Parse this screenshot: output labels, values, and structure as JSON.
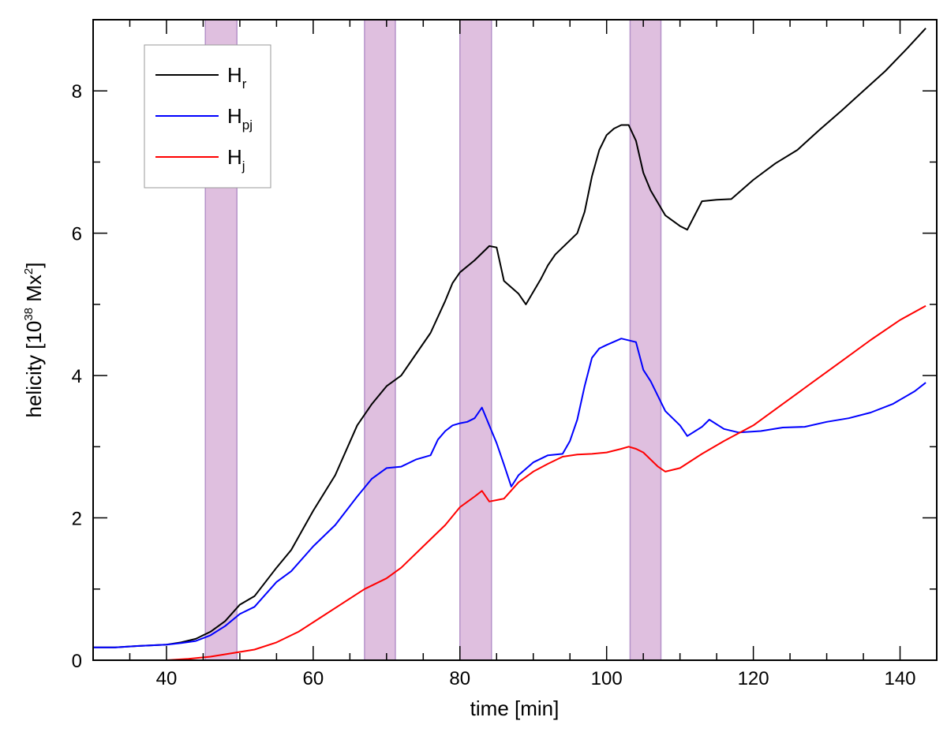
{
  "chart_data": {
    "type": "line",
    "title": "",
    "xlabel": "time [min]",
    "ylabel": {
      "prefix": "helicity [10",
      "exp": "38",
      "unit": " Mx",
      "unit_exp": "2",
      "suffix": "]"
    },
    "xlim": [
      30,
      145
    ],
    "ylim": [
      0,
      9
    ],
    "x_ticks": [
      40,
      60,
      80,
      100,
      120,
      140
    ],
    "y_ticks": [
      0,
      2,
      4,
      6,
      8
    ],
    "x_minor_step": 5,
    "y_minor_step": 1,
    "legend_position": "top-left",
    "shaded_intervals": [
      {
        "start": 45.3,
        "end": 49.6
      },
      {
        "start": 67.0,
        "end": 71.2
      },
      {
        "start": 80.0,
        "end": 84.3
      },
      {
        "start": 103.2,
        "end": 107.4
      }
    ],
    "shade_color": "#dfbfdf",
    "shade_edge_color": "#b592c9",
    "series": [
      {
        "name": "H",
        "sub": "r",
        "color": "#000000",
        "points": [
          [
            30,
            0.18
          ],
          [
            33,
            0.18
          ],
          [
            36,
            0.2
          ],
          [
            38,
            0.21
          ],
          [
            40,
            0.22
          ],
          [
            42,
            0.25
          ],
          [
            44,
            0.3
          ],
          [
            46,
            0.4
          ],
          [
            48,
            0.55
          ],
          [
            50,
            0.78
          ],
          [
            52,
            0.9
          ],
          [
            55,
            1.3
          ],
          [
            57,
            1.55
          ],
          [
            60,
            2.1
          ],
          [
            63,
            2.6
          ],
          [
            66,
            3.3
          ],
          [
            68,
            3.6
          ],
          [
            70,
            3.85
          ],
          [
            72,
            4.0
          ],
          [
            74,
            4.3
          ],
          [
            76,
            4.6
          ],
          [
            78,
            5.05
          ],
          [
            79,
            5.3
          ],
          [
            80,
            5.45
          ],
          [
            82,
            5.62
          ],
          [
            84,
            5.82
          ],
          [
            85,
            5.8
          ],
          [
            86,
            5.33
          ],
          [
            88,
            5.15
          ],
          [
            89,
            5.0
          ],
          [
            91,
            5.35
          ],
          [
            92,
            5.55
          ],
          [
            93,
            5.7
          ],
          [
            94,
            5.8
          ],
          [
            96,
            6.0
          ],
          [
            97,
            6.3
          ],
          [
            98,
            6.8
          ],
          [
            99,
            7.17
          ],
          [
            100,
            7.38
          ],
          [
            101,
            7.47
          ],
          [
            102,
            7.52
          ],
          [
            103,
            7.52
          ],
          [
            104,
            7.3
          ],
          [
            105,
            6.85
          ],
          [
            106,
            6.6
          ],
          [
            108,
            6.25
          ],
          [
            110,
            6.1
          ],
          [
            111,
            6.05
          ],
          [
            113,
            6.45
          ],
          [
            115,
            6.47
          ],
          [
            117,
            6.48
          ],
          [
            120,
            6.75
          ],
          [
            123,
            6.98
          ],
          [
            126,
            7.17
          ],
          [
            129,
            7.45
          ],
          [
            132,
            7.72
          ],
          [
            135,
            8.0
          ],
          [
            138,
            8.28
          ],
          [
            141,
            8.6
          ],
          [
            143.5,
            8.88
          ]
        ]
      },
      {
        "name": "H",
        "sub": "pj",
        "color": "#0000ff",
        "points": [
          [
            30,
            0.18
          ],
          [
            33,
            0.18
          ],
          [
            36,
            0.2
          ],
          [
            38,
            0.21
          ],
          [
            40,
            0.22
          ],
          [
            42,
            0.24
          ],
          [
            44,
            0.27
          ],
          [
            46,
            0.35
          ],
          [
            48,
            0.48
          ],
          [
            50,
            0.65
          ],
          [
            52,
            0.75
          ],
          [
            55,
            1.1
          ],
          [
            57,
            1.25
          ],
          [
            60,
            1.6
          ],
          [
            63,
            1.9
          ],
          [
            66,
            2.3
          ],
          [
            68,
            2.55
          ],
          [
            70,
            2.7
          ],
          [
            72,
            2.72
          ],
          [
            74,
            2.82
          ],
          [
            76,
            2.88
          ],
          [
            77,
            3.1
          ],
          [
            78,
            3.22
          ],
          [
            79,
            3.3
          ],
          [
            80,
            3.33
          ],
          [
            81,
            3.35
          ],
          [
            82,
            3.4
          ],
          [
            83,
            3.55
          ],
          [
            85,
            3.05
          ],
          [
            86,
            2.75
          ],
          [
            87,
            2.44
          ],
          [
            88,
            2.6
          ],
          [
            90,
            2.78
          ],
          [
            92,
            2.88
          ],
          [
            94,
            2.9
          ],
          [
            95,
            3.08
          ],
          [
            96,
            3.38
          ],
          [
            97,
            3.85
          ],
          [
            98,
            4.25
          ],
          [
            99,
            4.38
          ],
          [
            100,
            4.43
          ],
          [
            102,
            4.52
          ],
          [
            104,
            4.47
          ],
          [
            105,
            4.08
          ],
          [
            106,
            3.92
          ],
          [
            108,
            3.5
          ],
          [
            110,
            3.3
          ],
          [
            111,
            3.15
          ],
          [
            113,
            3.28
          ],
          [
            114,
            3.38
          ],
          [
            116,
            3.25
          ],
          [
            118,
            3.2
          ],
          [
            121,
            3.22
          ],
          [
            124,
            3.27
          ],
          [
            127,
            3.28
          ],
          [
            130,
            3.35
          ],
          [
            133,
            3.4
          ],
          [
            136,
            3.48
          ],
          [
            139,
            3.6
          ],
          [
            142,
            3.78
          ],
          [
            143.5,
            3.9
          ]
        ]
      },
      {
        "name": "H",
        "sub": "j",
        "color": "#ff0000",
        "points": [
          [
            40,
            0.0
          ],
          [
            43,
            0.02
          ],
          [
            46,
            0.05
          ],
          [
            49,
            0.1
          ],
          [
            52,
            0.15
          ],
          [
            55,
            0.25
          ],
          [
            58,
            0.4
          ],
          [
            61,
            0.6
          ],
          [
            64,
            0.8
          ],
          [
            67,
            1.0
          ],
          [
            70,
            1.15
          ],
          [
            72,
            1.3
          ],
          [
            75,
            1.6
          ],
          [
            78,
            1.9
          ],
          [
            80,
            2.15
          ],
          [
            82,
            2.3
          ],
          [
            83,
            2.38
          ],
          [
            84,
            2.23
          ],
          [
            86,
            2.27
          ],
          [
            88,
            2.5
          ],
          [
            90,
            2.65
          ],
          [
            92,
            2.76
          ],
          [
            94,
            2.86
          ],
          [
            96,
            2.89
          ],
          [
            98,
            2.9
          ],
          [
            100,
            2.92
          ],
          [
            102,
            2.97
          ],
          [
            103,
            3.0
          ],
          [
            104,
            2.97
          ],
          [
            105,
            2.92
          ],
          [
            106,
            2.82
          ],
          [
            107,
            2.72
          ],
          [
            108,
            2.65
          ],
          [
            110,
            2.7
          ],
          [
            113,
            2.9
          ],
          [
            116,
            3.08
          ],
          [
            120,
            3.3
          ],
          [
            124,
            3.6
          ],
          [
            128,
            3.9
          ],
          [
            132,
            4.2
          ],
          [
            136,
            4.5
          ],
          [
            140,
            4.78
          ],
          [
            143.5,
            4.98
          ]
        ]
      }
    ]
  }
}
